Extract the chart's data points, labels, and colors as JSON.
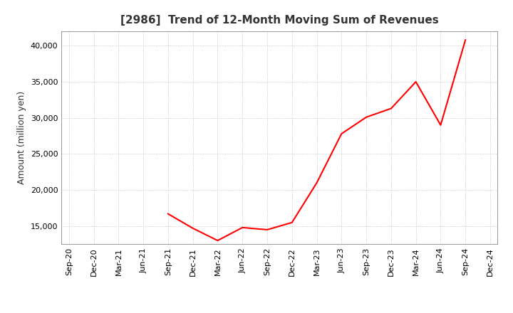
{
  "title": "[2986]  Trend of 12-Month Moving Sum of Revenues",
  "ylabel": "Amount (million yen)",
  "line_color": "#ff0000",
  "line_width": 1.5,
  "background_color": "#ffffff",
  "plot_background_color": "#ffffff",
  "grid_color": "#bbbbbb",
  "x_labels": [
    "Sep-20",
    "Dec-20",
    "Mar-21",
    "Jun-21",
    "Sep-21",
    "Dec-21",
    "Mar-22",
    "Jun-22",
    "Sep-22",
    "Dec-22",
    "Mar-23",
    "Jun-23",
    "Sep-23",
    "Dec-23",
    "Mar-24",
    "Jun-24",
    "Sep-24",
    "Dec-24"
  ],
  "y_values": [
    null,
    null,
    null,
    null,
    16700,
    14700,
    13000,
    14800,
    14500,
    15500,
    21000,
    27800,
    30100,
    31300,
    35000,
    29000,
    40800,
    null
  ],
  "ylim": [
    12500,
    42000
  ],
  "yticks": [
    15000,
    20000,
    25000,
    30000,
    35000,
    40000
  ],
  "title_fontsize": 11,
  "title_color": "#333333",
  "axis_label_fontsize": 9,
  "tick_fontsize": 8
}
